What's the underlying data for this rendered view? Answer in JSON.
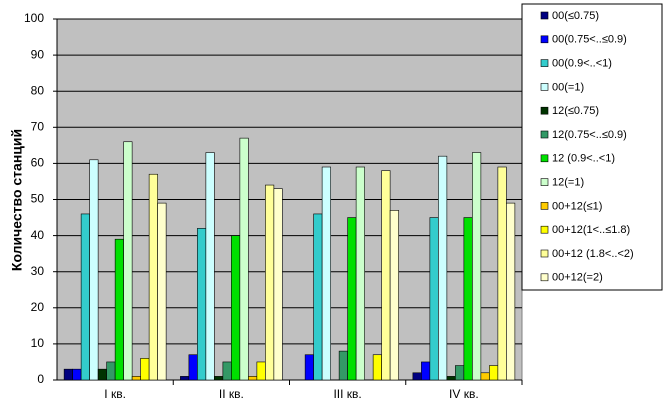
{
  "chart_data": {
    "type": "bar",
    "y_label": "Количество станций",
    "categories": [
      "I кв.",
      "II кв.",
      "III кв.",
      "IV кв."
    ],
    "series": [
      {
        "name": "00(≤0.75)",
        "color": "#000080",
        "values": [
          3,
          1,
          0,
          2
        ]
      },
      {
        "name": "00(0.75<..≤0.9)",
        "color": "#0000ff",
        "values": [
          3,
          7,
          7,
          5
        ]
      },
      {
        "name": "00(0.9<..<1)",
        "color": "#33cccc",
        "values": [
          46,
          42,
          46,
          45
        ]
      },
      {
        "name": "00(=1)",
        "color": "#ccffff",
        "values": [
          61,
          63,
          59,
          62
        ]
      },
      {
        "name": "12(≤0.75)",
        "color": "#003300",
        "values": [
          3,
          1,
          0,
          1
        ]
      },
      {
        "name": "12(0.75<..≤0.9)",
        "color": "#339966",
        "values": [
          5,
          5,
          8,
          4
        ]
      },
      {
        "name": "12 (0.9<..<1)",
        "color": "#00e000",
        "values": [
          39,
          40,
          45,
          45
        ]
      },
      {
        "name": "12(=1)",
        "color": "#ccffcc",
        "values": [
          66,
          67,
          59,
          63
        ]
      },
      {
        "name": "00+12(≤1)",
        "color": "#ffcc00",
        "values": [
          1,
          1,
          0,
          2
        ]
      },
      {
        "name": "00+12(1<..≤1.8)",
        "color": "#ffff00",
        "values": [
          6,
          5,
          7,
          4
        ]
      },
      {
        "name": "00+12 (1.8<..<2)",
        "color": "#ffff99",
        "values": [
          57,
          54,
          58,
          59
        ]
      },
      {
        "name": "00+12(=2)",
        "color": "#ffffcc",
        "values": [
          49,
          53,
          47,
          49
        ]
      }
    ],
    "ylim": [
      0,
      100
    ],
    "yticks": [
      0,
      10,
      20,
      30,
      40,
      50,
      60,
      70,
      80,
      90,
      100
    ],
    "grid": true,
    "plot_background": "#c0c0c0",
    "legend": "right"
  }
}
